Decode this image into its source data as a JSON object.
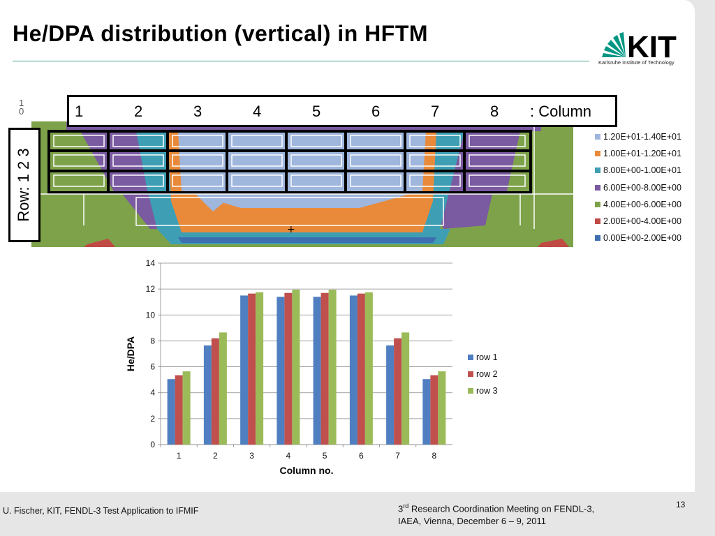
{
  "slide": {
    "title": "He/DPA distribution (vertical) in HFTM",
    "logo": {
      "text": "KIT",
      "subtitle": "Karlsruhe Institute of Technology"
    },
    "footer_left": "U. Fischer, KIT, FENDL-3 Test Application to IFMIF",
    "footer_mid_line1_sup": "rd",
    "footer_mid_line1_pre": "3",
    "footer_mid_line1_post": " Research Coordination Meeting on FENDL-3,",
    "footer_mid_line2": "IAEA, Vienna, December 6 – 9, 2011",
    "page_number": "13"
  },
  "contour_map": {
    "column_labels": [
      "1",
      "2",
      "3",
      "4",
      "5",
      "6",
      "7",
      "8"
    ],
    "column_suffix": ": Column",
    "row_label": "Row: 1  2  3",
    "corner_label": "1 0",
    "legend": [
      {
        "label": "1.20E+01-1.40E+01",
        "color": "#9fb6dd"
      },
      {
        "label": "1.00E+01-1.20E+01",
        "color": "#e88a3a"
      },
      {
        "label": "8.00E+00-1.00E+01",
        "color": "#3e9fb4"
      },
      {
        "label": "6.00E+00-8.00E+00",
        "color": "#7a5aa0"
      },
      {
        "label": "4.00E+00-6.00E+00",
        "color": "#7ea24a"
      },
      {
        "label": "2.00E+00-4.00E+00",
        "color": "#c04a44"
      },
      {
        "label": "0.00E+00-2.00E+00",
        "color": "#3d6fb0"
      }
    ]
  },
  "chart_data": {
    "type": "bar",
    "title": "",
    "xlabel": "Column no.",
    "ylabel": "He/DPA",
    "categories": [
      "1",
      "2",
      "3",
      "4",
      "5",
      "6",
      "7",
      "8"
    ],
    "ylim": [
      0,
      14
    ],
    "yticks": [
      "0",
      "2",
      "4",
      "6",
      "8",
      "10",
      "12",
      "14"
    ],
    "grid": true,
    "legend_position": "right",
    "series": [
      {
        "name": "row 1",
        "color": "#4f7fc1",
        "values": [
          5.05,
          7.65,
          11.5,
          11.4,
          11.4,
          11.5,
          7.65,
          5.05
        ]
      },
      {
        "name": "row 2",
        "color": "#c0504d",
        "values": [
          5.35,
          8.2,
          11.65,
          11.7,
          11.7,
          11.65,
          8.2,
          5.35
        ]
      },
      {
        "name": "row 3",
        "color": "#9bbb59",
        "values": [
          5.65,
          8.65,
          11.75,
          11.95,
          11.95,
          11.75,
          8.65,
          5.65
        ]
      }
    ]
  }
}
